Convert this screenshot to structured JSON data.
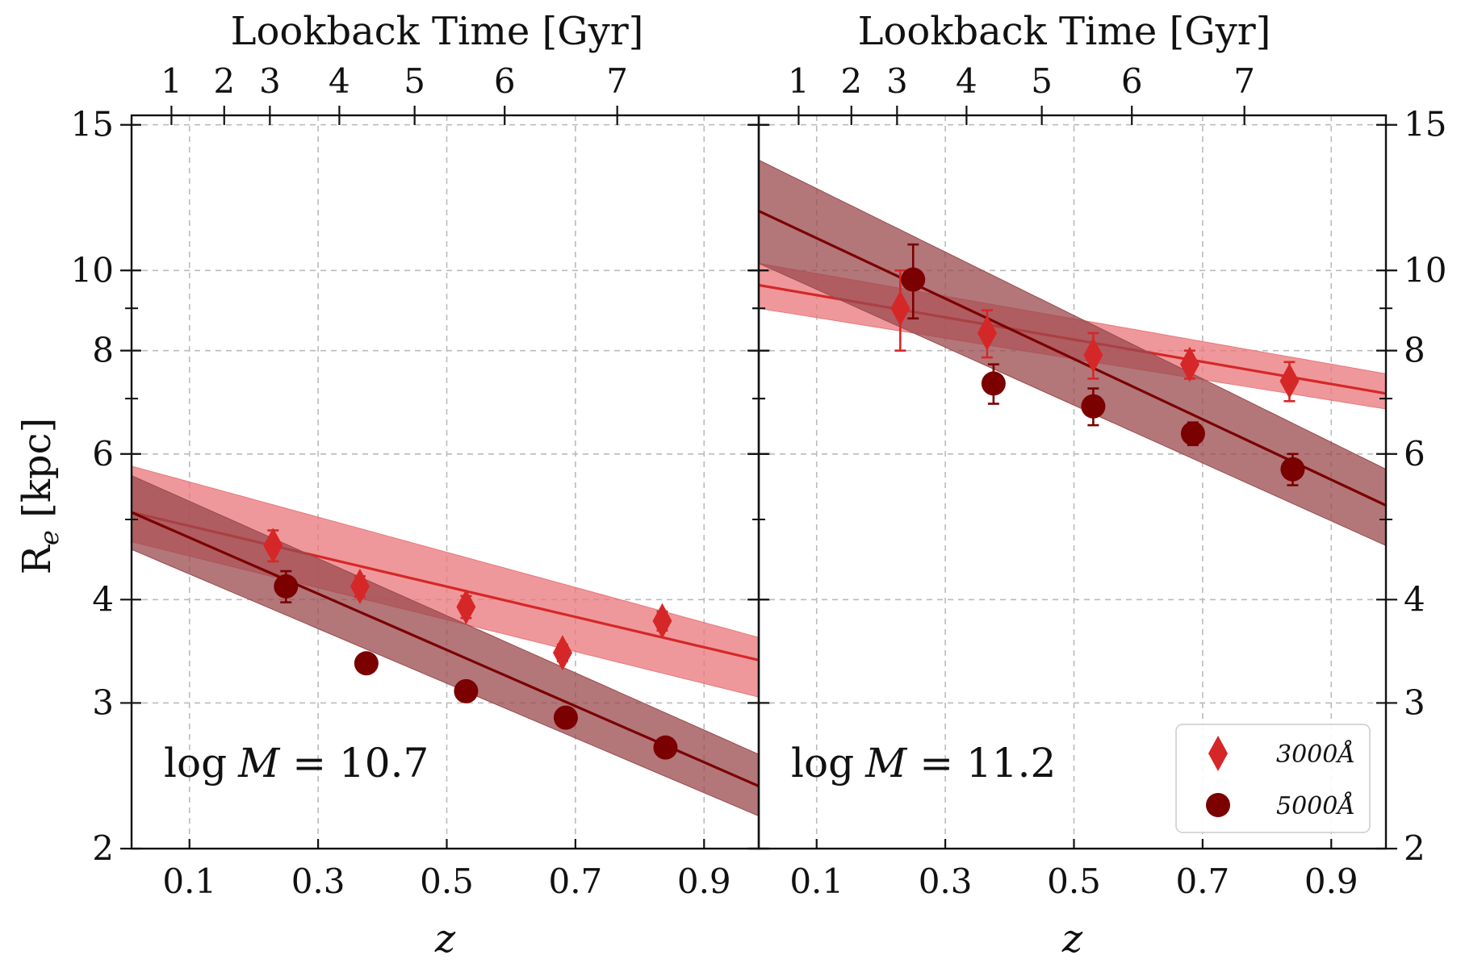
{
  "colors": {
    "c3000": "#d62728",
    "c5000": "#7b0000",
    "band3000": "#e9767a",
    "band5000": "#9a4a4d",
    "grid": "#bbbbbb",
    "axis": "#111111"
  },
  "chart_data": [
    {
      "type": "scatter",
      "panel": "left",
      "xlabel": "z",
      "ylabel": "R_e [kpc]",
      "ylabel_main": "R",
      "ylabel_sub": "e",
      "ylabel_rest": " [kpc]",
      "top_axis_label": "Lookback Time [Gyr]",
      "xlim": [
        0.01,
        0.985
      ],
      "ylim": [
        2,
        15.4
      ],
      "yscale": "log",
      "grid": true,
      "annotation": "log M = 10.7",
      "annotation_parts": {
        "fn": "log",
        "var": "M",
        "rest": " = 10.7"
      },
      "x_ticks": [
        0.1,
        0.3,
        0.5,
        0.7,
        0.9
      ],
      "x_tick_labels": [
        "0.1",
        "0.3",
        "0.5",
        "0.7",
        "0.9"
      ],
      "y_ticks_major": [
        2,
        3,
        4,
        6,
        8,
        10,
        15
      ],
      "y_tick_labels": [
        "2",
        "3",
        "4",
        "6",
        "8",
        "10",
        "15"
      ],
      "y_ticks_minor": [
        5,
        7,
        9
      ],
      "top_ticks_gyr": [
        1,
        2,
        3,
        4,
        5,
        6,
        7
      ],
      "top_tick_labels": [
        "1",
        "2",
        "3",
        "4",
        "5",
        "6",
        "7"
      ],
      "series": [
        {
          "name": "3000Å",
          "marker": "diamond",
          "color_key": "c3000",
          "x": [
            0.23,
            0.365,
            0.53,
            0.68,
            0.835
          ],
          "y": [
            4.65,
            4.15,
            3.92,
            3.45,
            3.77
          ],
          "yerr": [
            0.2,
            0.12,
            0.12,
            0.08,
            0.1
          ],
          "fit": {
            "z": [
              0.01,
              0.985
            ],
            "y": [
              5.1,
              3.38
            ]
          },
          "band_upper": [
            5.8,
            3.6
          ],
          "band_lower": [
            4.7,
            3.05
          ]
        },
        {
          "name": "5000Å",
          "marker": "circle",
          "color_key": "c5000",
          "x": [
            0.25,
            0.375,
            0.53,
            0.685,
            0.84
          ],
          "y": [
            4.15,
            3.35,
            3.1,
            2.88,
            2.65
          ],
          "yerr": [
            0.18,
            0.0,
            0.0,
            0.0,
            0.0
          ],
          "fit": {
            "z": [
              0.01,
              0.985
            ],
            "y": [
              5.1,
              2.38
            ]
          },
          "band_upper": [
            5.65,
            2.6
          ],
          "band_lower": [
            4.6,
            2.19
          ]
        }
      ]
    },
    {
      "type": "scatter",
      "panel": "right",
      "xlabel": "z",
      "top_axis_label": "Lookback Time [Gyr]",
      "xlim": [
        0.01,
        0.985
      ],
      "ylim": [
        2,
        15.4
      ],
      "yscale": "log",
      "grid": true,
      "annotation": "log M = 11.2",
      "annotation_parts": {
        "fn": "log",
        "var": "M",
        "rest": " = 11.2"
      },
      "x_ticks": [
        0.1,
        0.3,
        0.5,
        0.7,
        0.9
      ],
      "x_tick_labels": [
        "0.1",
        "0.3",
        "0.5",
        "0.7",
        "0.9"
      ],
      "y_ticks_major": [
        2,
        3,
        4,
        6,
        8,
        10,
        15
      ],
      "y_tick_labels": [
        "2",
        "3",
        "4",
        "6",
        "8",
        "10",
        "15"
      ],
      "y_ticks_minor": [
        5,
        7,
        9
      ],
      "top_ticks_gyr": [
        1,
        2,
        3,
        4,
        5,
        6,
        7
      ],
      "top_tick_labels": [
        "1",
        "2",
        "3",
        "4",
        "5",
        "6",
        "7"
      ],
      "legend": {
        "placement": "bottom-right",
        "entries": [
          {
            "label": "3000Å",
            "marker": "diamond",
            "color_key": "c3000"
          },
          {
            "label": "5000Å",
            "marker": "circle",
            "color_key": "c5000"
          }
        ]
      },
      "series": [
        {
          "name": "3000Å",
          "marker": "diamond",
          "color_key": "c3000",
          "x": [
            0.23,
            0.365,
            0.53,
            0.68,
            0.835
          ],
          "y": [
            9.0,
            8.4,
            7.9,
            7.7,
            7.35
          ],
          "yerr": [
            1.0,
            0.55,
            0.5,
            0.3,
            0.4
          ],
          "fit": {
            "z": [
              0.01,
              0.985
            ],
            "y": [
              9.6,
              7.1
            ]
          },
          "band_upper": [
            10.2,
            7.5
          ],
          "band_lower": [
            9.0,
            6.8
          ]
        },
        {
          "name": "5000Å",
          "marker": "circle",
          "color_key": "c5000",
          "x": [
            0.25,
            0.375,
            0.53,
            0.685,
            0.84
          ],
          "y": [
            9.75,
            7.3,
            6.85,
            6.35,
            5.75
          ],
          "yerr": [
            1.0,
            0.4,
            0.35,
            0.2,
            0.25
          ],
          "fit": {
            "z": [
              0.01,
              0.985
            ],
            "y": [
              11.8,
              5.2
            ]
          },
          "band_upper": [
            13.6,
            5.75
          ],
          "band_lower": [
            10.2,
            4.65
          ]
        }
      ]
    }
  ]
}
